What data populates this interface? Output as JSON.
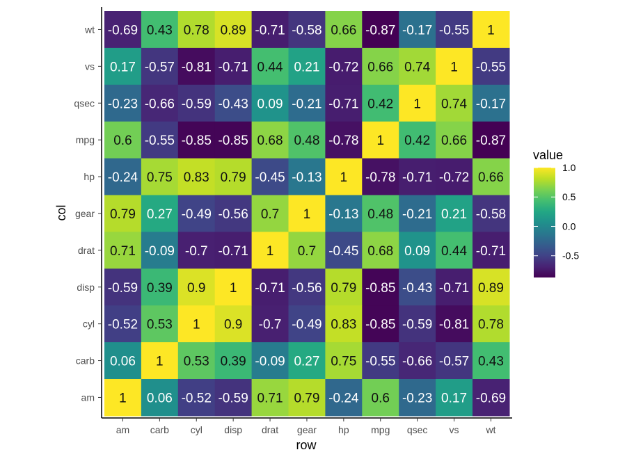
{
  "chart_data": {
    "type": "heatmap",
    "xlabel": "row",
    "ylabel": "col",
    "x_categories": [
      "am",
      "carb",
      "cyl",
      "disp",
      "drat",
      "gear",
      "hp",
      "mpg",
      "qsec",
      "vs",
      "wt"
    ],
    "y_categories": [
      "wt",
      "vs",
      "qsec",
      "mpg",
      "hp",
      "gear",
      "drat",
      "disp",
      "cyl",
      "carb",
      "am"
    ],
    "values": [
      [
        -0.69,
        0.43,
        0.78,
        0.89,
        -0.71,
        -0.58,
        0.66,
        -0.87,
        -0.17,
        -0.55,
        1
      ],
      [
        0.17,
        -0.57,
        -0.81,
        -0.71,
        0.44,
        0.21,
        -0.72,
        0.66,
        0.74,
        1,
        -0.55
      ],
      [
        -0.23,
        -0.66,
        -0.59,
        -0.43,
        0.09,
        -0.21,
        -0.71,
        0.42,
        1,
        0.74,
        -0.17
      ],
      [
        0.6,
        -0.55,
        -0.85,
        -0.85,
        0.68,
        0.48,
        -0.78,
        1,
        0.42,
        0.66,
        -0.87
      ],
      [
        -0.24,
        0.75,
        0.83,
        0.79,
        -0.45,
        -0.13,
        1,
        -0.78,
        -0.71,
        -0.72,
        0.66
      ],
      [
        0.79,
        0.27,
        -0.49,
        -0.56,
        0.7,
        1,
        -0.13,
        0.48,
        -0.21,
        0.21,
        -0.58
      ],
      [
        0.71,
        -0.09,
        -0.7,
        -0.71,
        1,
        0.7,
        -0.45,
        0.68,
        0.09,
        0.44,
        -0.71
      ],
      [
        -0.59,
        0.39,
        0.9,
        1,
        -0.71,
        -0.56,
        0.79,
        -0.85,
        -0.43,
        -0.71,
        0.89
      ],
      [
        -0.52,
        0.53,
        1,
        0.9,
        -0.7,
        -0.49,
        0.83,
        -0.85,
        -0.59,
        -0.81,
        0.78
      ],
      [
        0.06,
        1,
        0.53,
        0.39,
        -0.09,
        0.27,
        0.75,
        -0.55,
        -0.66,
        -0.57,
        0.43
      ],
      [
        1,
        0.06,
        -0.52,
        -0.59,
        0.71,
        0.79,
        -0.24,
        0.6,
        -0.23,
        0.17,
        -0.69
      ]
    ],
    "value_range": [
      -0.87,
      1
    ],
    "color_scale": "viridis",
    "legend": {
      "title": "value",
      "position": "right",
      "ticks": [
        1.0,
        0.5,
        0.0,
        -0.5
      ],
      "tick_labels": [
        "1.0",
        "0.5",
        "0.0",
        "-0.5"
      ]
    },
    "grid": false
  }
}
